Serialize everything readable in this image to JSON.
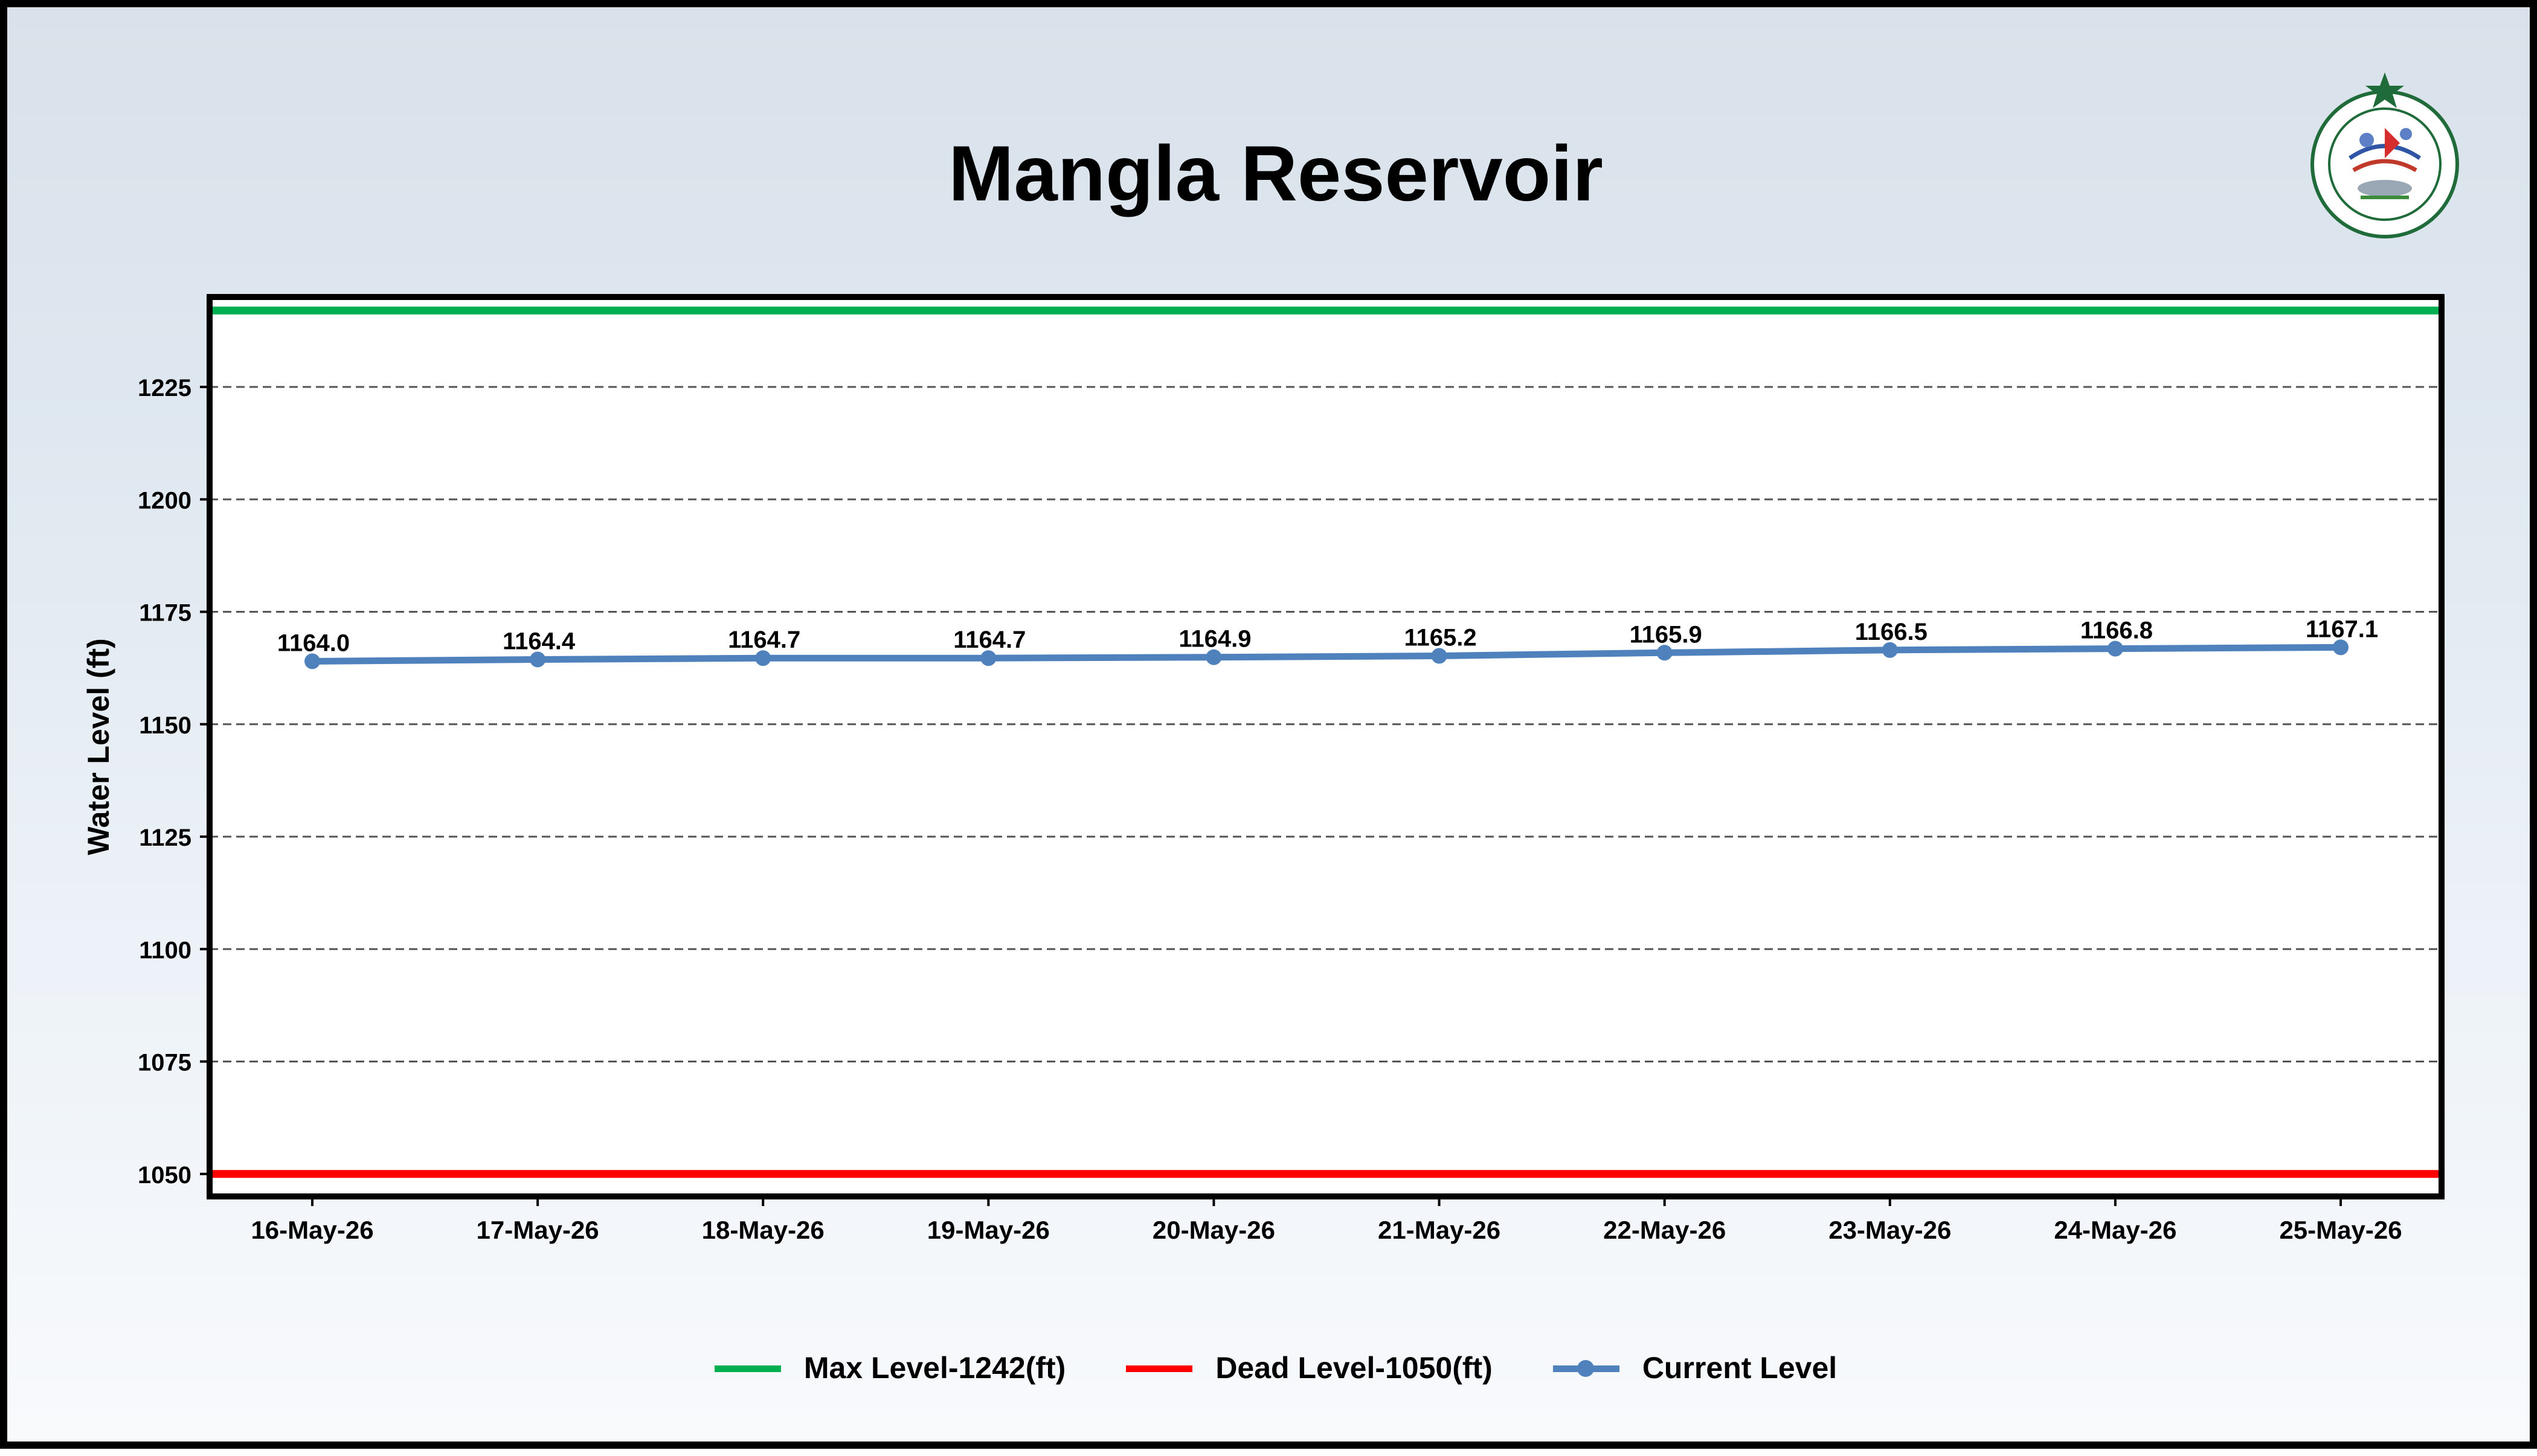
{
  "page": {
    "title": "Mangla Reservoir"
  },
  "logo": {
    "label": "PAKISTAN METEOROLOGICAL DEPARTMENT"
  },
  "chart_data": {
    "type": "line",
    "title": "Mangla Reservoir",
    "xlabel": "",
    "ylabel": "Water Level (ft)",
    "categories": [
      "16-May-26",
      "17-May-26",
      "18-May-26",
      "19-May-26",
      "20-May-26",
      "21-May-26",
      "22-May-26",
      "23-May-26",
      "24-May-26",
      "25-May-26"
    ],
    "series": [
      {
        "name": "Current Level",
        "values": [
          1164.0,
          1164.4,
          1164.7,
          1164.7,
          1164.9,
          1165.2,
          1165.9,
          1166.5,
          1166.8,
          1167.1
        ],
        "labels": [
          "1164.0",
          "1164.4",
          "1164.7",
          "1164.7",
          "1164.9",
          "1165.2",
          "1165.9",
          "1166.5",
          "1166.8",
          "1167.1"
        ],
        "color": "#4f81bd"
      }
    ],
    "reference_lines": [
      {
        "name": "Max Level-1242(ft)",
        "value": 1242,
        "color": "#00b050"
      },
      {
        "name": "Dead Level-1050(ft)",
        "value": 1050,
        "color": "#ff0000"
      }
    ],
    "ylim": [
      1045,
      1245
    ],
    "yticks": [
      1050,
      1075,
      1100,
      1125,
      1150,
      1175,
      1200,
      1225
    ],
    "ytick_labels": [
      "1050",
      "1075",
      "1100",
      "1125",
      "1150",
      "1175",
      "1200",
      "1225"
    ],
    "grid": "horizontal-dashed",
    "legend_position": "bottom-center"
  },
  "legend": {
    "items": [
      {
        "label": "Max Level-1242(ft)",
        "color": "#00b050",
        "marker": false
      },
      {
        "label": "Dead Level-1050(ft)",
        "color": "#ff0000",
        "marker": false
      },
      {
        "label": "Current Level",
        "color": "#4f81bd",
        "marker": true
      }
    ]
  }
}
